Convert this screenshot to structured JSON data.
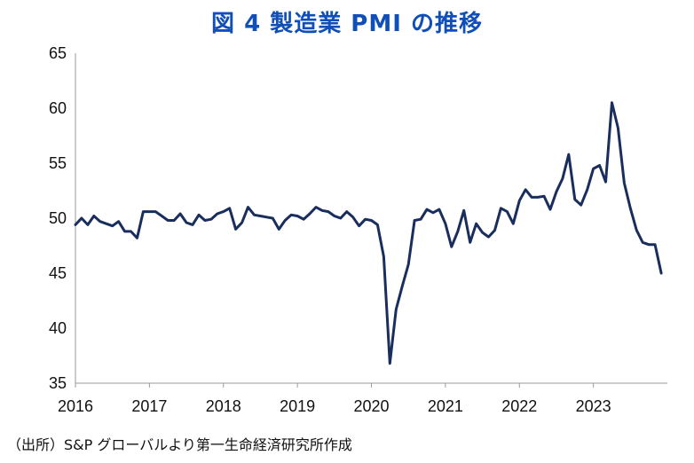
{
  "title": "図 4 製造業 PMI の推移",
  "source": "（出所）S&P グローバルより第一生命経済研究所作成",
  "chart_data": {
    "type": "line",
    "title": "図 4 製造業 PMI の推移",
    "xlabel": "",
    "ylabel": "",
    "ylim": [
      35,
      65
    ],
    "yticks": [
      35,
      40,
      45,
      50,
      55,
      60,
      65
    ],
    "xlim": [
      2016.0,
      2024.0
    ],
    "xticks": [
      2016,
      2017,
      2018,
      2019,
      2020,
      2021,
      2022,
      2023
    ],
    "grid": false,
    "line_color": "#1a2e5e",
    "series": [
      {
        "name": "",
        "frequency": "monthly",
        "start": "2016-01",
        "values": [
          49.4,
          50.0,
          49.4,
          50.2,
          49.7,
          49.5,
          49.3,
          49.7,
          48.8,
          48.8,
          48.2,
          50.6,
          50.6,
          50.6,
          50.2,
          49.8,
          49.8,
          50.4,
          49.6,
          49.4,
          50.3,
          49.8,
          49.9,
          50.4,
          50.6,
          50.9,
          49.0,
          49.6,
          51.0,
          50.3,
          50.2,
          50.1,
          50.0,
          49.0,
          49.8,
          50.3,
          50.2,
          49.9,
          50.4,
          51.0,
          50.7,
          50.6,
          50.2,
          50.0,
          50.6,
          50.1,
          49.3,
          49.9,
          49.8,
          49.4,
          46.5,
          36.8,
          41.7,
          43.8,
          45.8,
          49.8,
          49.9,
          50.8,
          50.5,
          50.8,
          49.5,
          47.4,
          48.8,
          50.7,
          47.8,
          49.5,
          48.7,
          48.3,
          48.9,
          50.9,
          50.6,
          49.5,
          51.6,
          52.6,
          51.9,
          51.9,
          52.0,
          50.8,
          52.4,
          53.6,
          55.8,
          51.7,
          51.2,
          52.6,
          54.5,
          54.8,
          53.3,
          60.5,
          58.2,
          53.2,
          50.9,
          48.9,
          47.8,
          47.6,
          47.6,
          45.0
        ]
      }
    ]
  }
}
